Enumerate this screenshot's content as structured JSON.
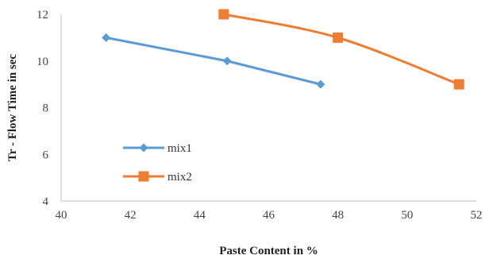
{
  "chart_data": {
    "type": "line",
    "title": "",
    "xlabel": "Paste Content in %",
    "ylabel": "Tr - Flow Time in sec",
    "xlim": [
      40,
      52
    ],
    "ylim": [
      4,
      12
    ],
    "x_ticks": [
      40,
      42,
      44,
      46,
      48,
      50,
      52
    ],
    "y_ticks": [
      4,
      6,
      8,
      10,
      12
    ],
    "x_tick_labels": [
      "40",
      "42",
      "44",
      "46",
      "48",
      "50",
      "52"
    ],
    "y_tick_labels": [
      "4",
      "6",
      "8",
      "10",
      "12"
    ],
    "grid": false,
    "legend_position": "left-bottom",
    "series": [
      {
        "name": "mix1",
        "color": "#5b9bd5",
        "marker": "diamond",
        "smooth": false,
        "x": [
          41.3,
          44.8,
          47.5
        ],
        "y": [
          11,
          10,
          9
        ]
      },
      {
        "name": "mix2",
        "color": "#ed7d31",
        "marker": "square",
        "smooth": true,
        "x": [
          44.7,
          48.0,
          51.5
        ],
        "y": [
          12,
          11,
          9
        ]
      }
    ]
  }
}
